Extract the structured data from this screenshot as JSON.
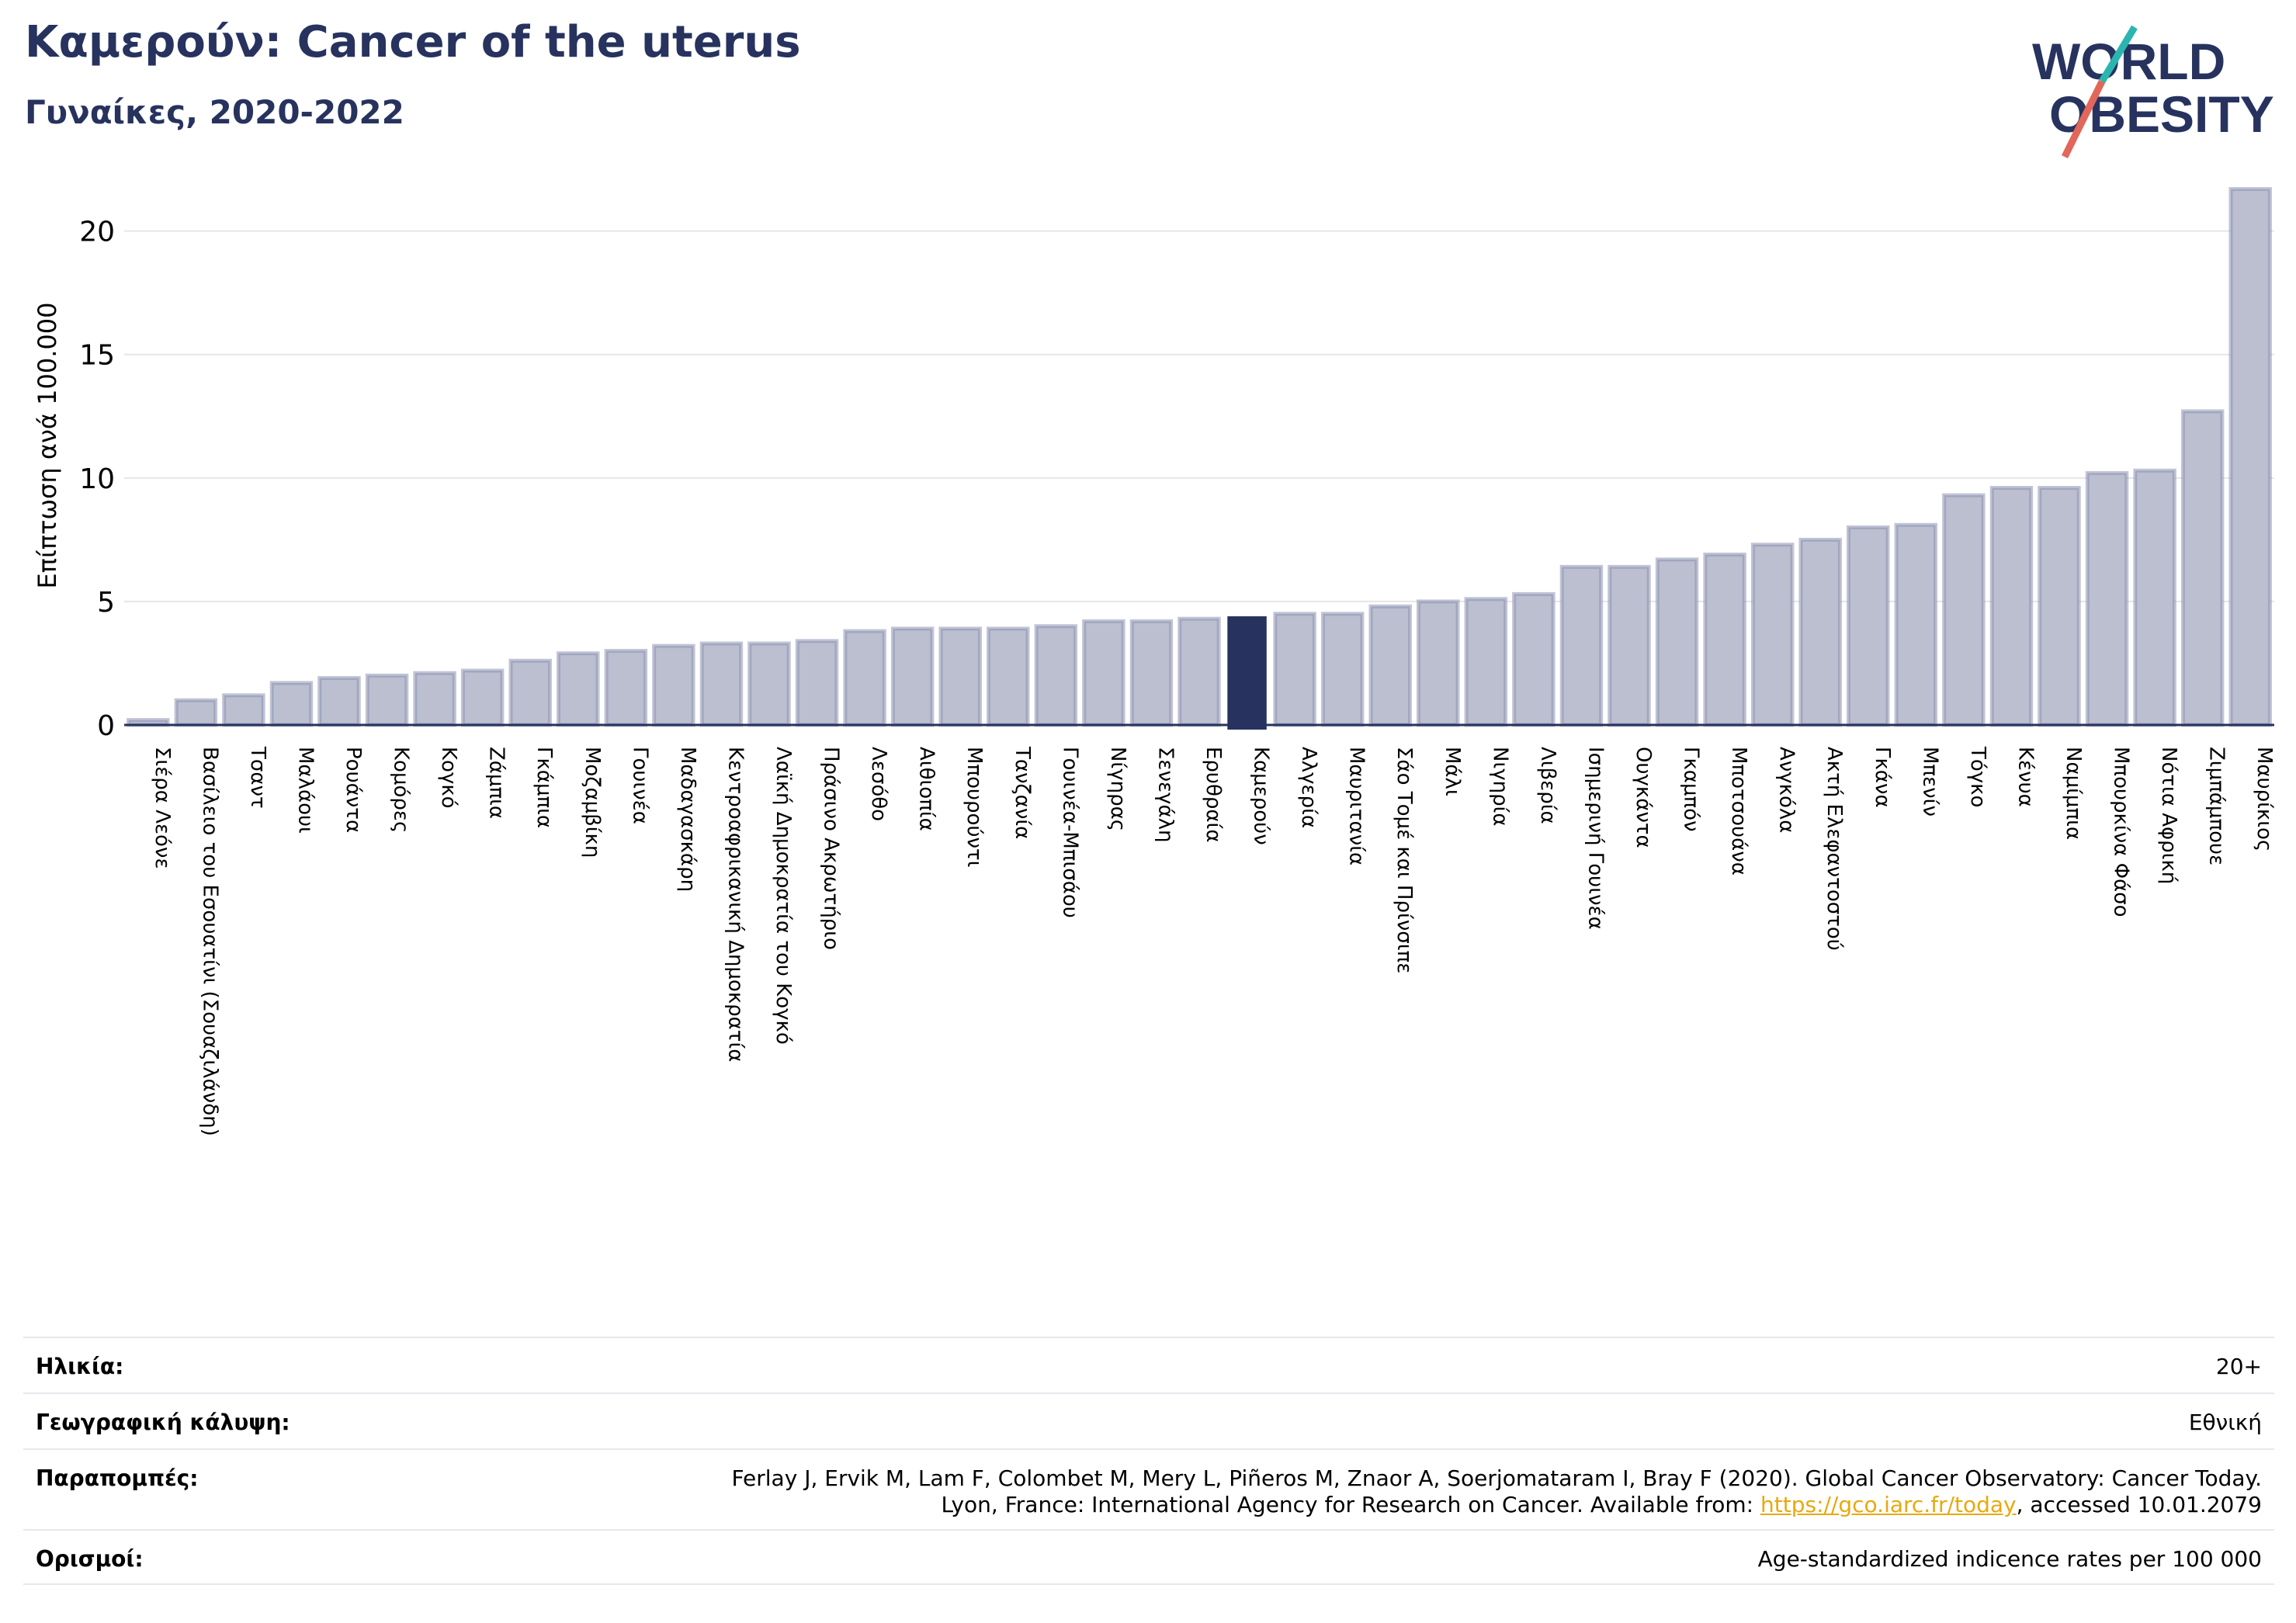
{
  "header": {
    "title": "Καμερούν: Cancer of the uterus",
    "subtitle": "Γυναίκες, 2020-2022"
  },
  "logo": {
    "line1": "WORLD",
    "line2": "OBESITY"
  },
  "colors": {
    "bar": "#bbbfd0",
    "bar_edge": "#8e94b3",
    "highlight": "#27335e",
    "title": "#27335e",
    "link": "#e8a90f"
  },
  "chart_data": {
    "type": "bar",
    "ylabel": "Επίπτωση ανά 100.000",
    "ylim": [
      0,
      22
    ],
    "yticks": [
      0,
      5,
      10,
      15,
      20
    ],
    "grid": true,
    "highlight": "Καμερούν",
    "categories": [
      "Σιέρα Λεόνε",
      "Βασίλειο του Εσουατίνι (Σουαζιλάνδη)",
      "Τσαντ",
      "Μαλάουι",
      "Ρουάντα",
      "Κομόρες",
      "Κογκό",
      "Ζάμπια",
      "Γκάμπια",
      "Μοζαμβίκη",
      "Γουινέα",
      "Μαδαγασκάρη",
      "Κεντροαφρικανική Δημοκρατία",
      "Λαϊκή Δημοκρατία του Κογκό",
      "Πράσινο Ακρωτήριο",
      "Λεσόθο",
      "Αιθιοπία",
      "Μπουρούντι",
      "Τανζανία",
      "Γουινέα-Μπισάου",
      "Νίγηρας",
      "Σενεγάλη",
      "Ερυθραία",
      "Καμερούν",
      "Αλγερία",
      "Μαυριτανία",
      "Σάο Τομέ και Πρίνσιπε",
      "Μάλι",
      "Νιγηρία",
      "Λιβερία",
      "Ισημερινή Γουινέα",
      "Ουγκάντα",
      "Γκαμπόν",
      "Μποτσουάνα",
      "Ανγκόλα",
      "Ακτή Ελεφαντοστού",
      "Γκάνα",
      "Μπενίν",
      "Τόγκο",
      "Κένυα",
      "Ναμίμπια",
      "Μπουρκίνα Φάσο",
      "Νότια Αφρική",
      "Ζιμπάμπουε",
      "Μαυρίκιος"
    ],
    "values": [
      0.2,
      1.0,
      1.2,
      1.7,
      1.9,
      2.0,
      2.1,
      2.2,
      2.6,
      2.9,
      3.0,
      3.2,
      3.3,
      3.3,
      3.4,
      3.8,
      3.9,
      3.9,
      3.9,
      4.0,
      4.2,
      4.2,
      4.3,
      4.4,
      4.5,
      4.5,
      4.8,
      5.0,
      5.1,
      5.3,
      6.4,
      6.4,
      6.7,
      6.9,
      7.3,
      7.5,
      8.0,
      8.1,
      9.3,
      9.6,
      9.6,
      10.2,
      10.3,
      12.7,
      21.7
    ]
  },
  "meta": [
    {
      "label": "Ηλικία:",
      "value": "20+"
    },
    {
      "label": "Γεωγραφική κάλυψη:",
      "value": "Εθνική"
    },
    {
      "label": "Παραπομπές:",
      "value": "Ferlay J, Ervik M, Lam F, Colombet M, Mery L, Piñeros M, Znaor A, Soerjomataram I, Bray F (2020). Global Cancer Observatory: Cancer Today.",
      "value2": "Lyon, France: International Agency for Research on Cancer. Available from: ",
      "link": "https://gco.iarc.fr/today",
      "value3": ", accessed 10.01.2079"
    },
    {
      "label": "Ορισμοί:",
      "value": "Age-standardized indicence rates per 100 000"
    }
  ]
}
